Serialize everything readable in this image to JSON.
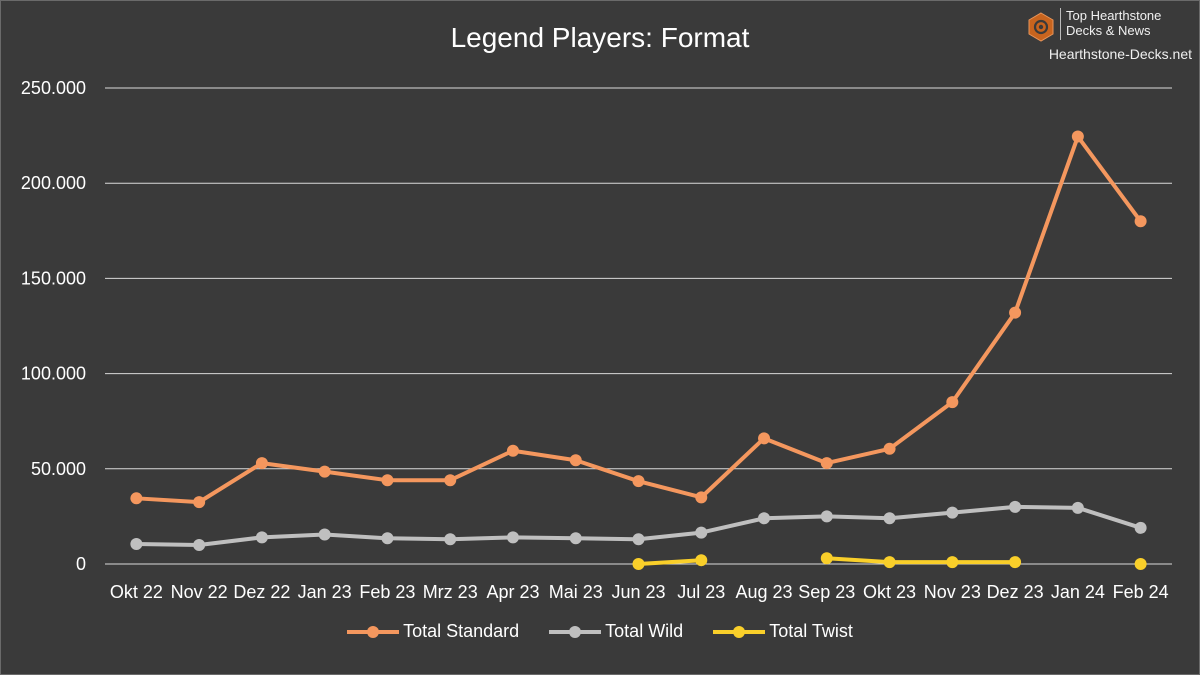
{
  "brand": {
    "line1": "Top Hearthstone",
    "line2": "Decks & News",
    "site": "Hearthstone-Decks.net",
    "logo_icon": "hexagon-swirl-icon",
    "logo_color": "#c8641e"
  },
  "chart_data": {
    "type": "line",
    "title": "Legend Players: Format",
    "xlabel": "",
    "ylabel": "",
    "categories": [
      "Okt 22",
      "Nov 22",
      "Dez 22",
      "Jan 23",
      "Feb 23",
      "Mrz 23",
      "Apr 23",
      "Mai 23",
      "Jun 23",
      "Jul 23",
      "Aug 23",
      "Sep 23",
      "Okt 23",
      "Nov 23",
      "Dez 23",
      "Jan 24",
      "Feb 24"
    ],
    "ylim": [
      0,
      250000
    ],
    "yticks": [
      0,
      50000,
      100000,
      150000,
      200000,
      250000
    ],
    "ytick_labels": [
      "0",
      "50.000",
      "100.000",
      "150.000",
      "200.000",
      "250.000"
    ],
    "grid": true,
    "legend_position": "bottom",
    "series": [
      {
        "name": "Total Standard",
        "color": "#f4975e",
        "values": [
          34500,
          32500,
          53000,
          48500,
          44000,
          44000,
          59500,
          54500,
          43500,
          35000,
          66000,
          53000,
          60500,
          85000,
          132000,
          224500,
          180000
        ]
      },
      {
        "name": "Total Wild",
        "color": "#bfbfbf",
        "values": [
          10500,
          10000,
          14000,
          15500,
          13500,
          13000,
          14000,
          13500,
          13000,
          16500,
          24000,
          25000,
          24000,
          27000,
          30000,
          29500,
          19000
        ]
      },
      {
        "name": "Total Twist",
        "color": "#f9cf2a",
        "values": [
          null,
          null,
          null,
          null,
          null,
          null,
          null,
          null,
          0,
          2000,
          null,
          3000,
          1000,
          1000,
          1000,
          null,
          0
        ]
      }
    ]
  }
}
